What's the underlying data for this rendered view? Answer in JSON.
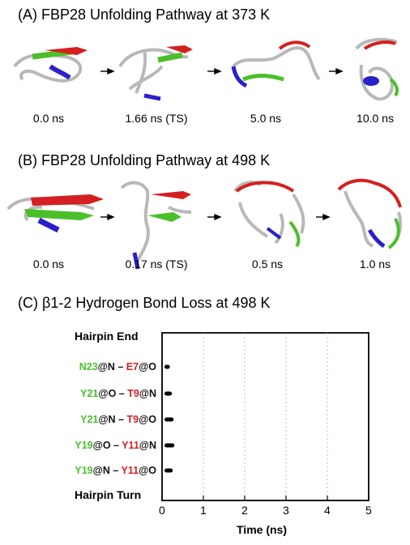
{
  "panel_a": {
    "title": "(A)  FBP28 Unfolding Pathway  at 373 K",
    "times": [
      "0.0 ns",
      "1.66 ns (TS)",
      "5.0 ns",
      "10.0 ns"
    ]
  },
  "panel_b": {
    "title": "(B)  FBP28 Unfolding Pathway at 498 K",
    "times": [
      "0.0 ns",
      "0.17 ns (TS)",
      "0.5 ns",
      "1.0 ns"
    ]
  },
  "panel_c": {
    "title": "(C)  β1-2 Hydrogen Bond Loss at 498 K",
    "top_label": "Hairpin End",
    "bottom_label": "Hairpin Turn",
    "bonds": [
      {
        "a": "N23",
        "a_suffix": "@N – ",
        "b": "E7",
        "b_suffix": "@O"
      },
      {
        "a": "Y21",
        "a_suffix": "@O – ",
        "b": "T9",
        "b_suffix": "@N"
      },
      {
        "a": "Y21",
        "a_suffix": "@N – ",
        "b": "T9",
        "b_suffix": "@O"
      },
      {
        "a": "Y19",
        "a_suffix": "@O – ",
        "b": "Y11",
        "b_suffix": "@N"
      },
      {
        "a": "Y19",
        "a_suffix": "@N – ",
        "b": "Y11",
        "b_suffix": "@O"
      }
    ],
    "x_ticks": [
      "0",
      "1",
      "2",
      "3",
      "4",
      "5"
    ],
    "xlabel": "Time (ns)"
  },
  "chart_data": {
    "type": "scatter",
    "title": "β1-2 Hydrogen Bond Loss at 498 K",
    "xlabel": "Time (ns)",
    "xlim": [
      0,
      5
    ],
    "grid": "vertical dotted",
    "categories": [
      "N23@N – E7@O",
      "Y21@O – T9@N",
      "Y21@N – T9@O",
      "Y19@O – Y11@N",
      "Y19@N – Y11@O"
    ],
    "series": [
      {
        "name": "N23@N – E7@O",
        "present_intervals": [
          [
            0.0,
            0.13
          ]
        ]
      },
      {
        "name": "Y21@O – T9@N",
        "present_intervals": [
          [
            0.0,
            0.18
          ]
        ]
      },
      {
        "name": "Y21@N – T9@O",
        "present_intervals": [
          [
            0.0,
            0.22
          ]
        ]
      },
      {
        "name": "Y19@O – Y11@N",
        "present_intervals": [
          [
            0.0,
            0.24
          ]
        ]
      },
      {
        "name": "Y19@N – Y11@O",
        "present_intervals": [
          [
            0.0,
            0.2
          ]
        ]
      }
    ]
  },
  "colors": {
    "green": "#4bbf2a",
    "red": "#d42020",
    "blue": "#2a20c8",
    "grey": "#b8b8b8"
  }
}
